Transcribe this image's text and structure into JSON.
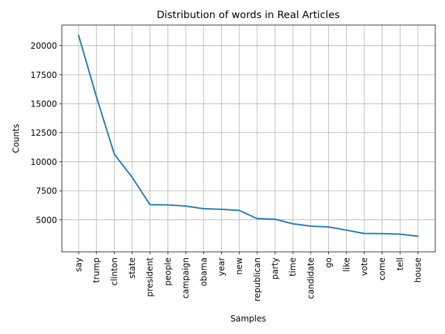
{
  "chart_data": {
    "type": "line",
    "title": "Distribution of words in Real Articles",
    "xlabel": "Samples",
    "ylabel": "Counts",
    "categories": [
      "say",
      "trump",
      "clinton",
      "state",
      "president",
      "people",
      "campaign",
      "obama",
      "year",
      "new",
      "republican",
      "party",
      "time",
      "candidate",
      "go",
      "like",
      "vote",
      "come",
      "tell",
      "house"
    ],
    "series": [
      {
        "values": [
          20900,
          15600,
          10650,
          8650,
          6300,
          6280,
          6180,
          5950,
          5900,
          5800,
          5100,
          5050,
          4650,
          4450,
          4380,
          4100,
          3820,
          3800,
          3760,
          3580
        ],
        "color": "#1f77b4"
      }
    ],
    "ylim": [
      2230,
      21780
    ],
    "yticks": [
      5000,
      7500,
      10000,
      12500,
      15000,
      17500,
      20000
    ],
    "yticklabels": [
      "5000",
      "7500",
      "10000",
      "12500",
      "15000",
      "17500",
      "20000"
    ],
    "grid": true,
    "legend": "none"
  }
}
